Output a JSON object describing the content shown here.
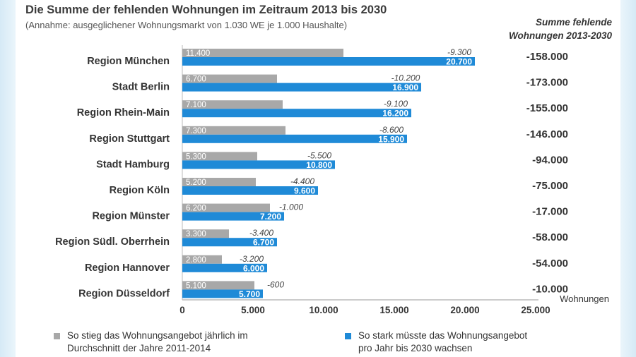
{
  "chart_data": {
    "type": "bar",
    "title": "Die Summe der fehlenden Wohnungen im Zeitraum 2013 bis 2030",
    "subtitle": "(Annahme: ausgeglichener Wohnungsmarkt von 1.030 WE je 1.000 Haushalte)",
    "sum_header": [
      "Summe fehlende",
      "Wohnungen 2013-2030"
    ],
    "xlabel": "Wohnungen",
    "xlim": [
      0,
      25000
    ],
    "xticks": [
      "0",
      "5.000",
      "10.000",
      "15.000",
      "20.000",
      "25.000"
    ],
    "categories": [
      "Region München",
      "Stadt Berlin",
      "Region Rhein-Main",
      "Region Stuttgart",
      "Stadt Hamburg",
      "Region Köln",
      "Region Münster",
      "Region Südl. Oberrhein",
      "Region Hannover",
      "Region Düsseldorf"
    ],
    "series": [
      {
        "name": "So stieg das Wohnungsangebot jährlich im Durchschnitt der Jahre 2011-2014",
        "color": "#a8a8a8",
        "values": [
          11400,
          6700,
          7100,
          7300,
          5300,
          5200,
          6200,
          3300,
          2800,
          5100
        ],
        "labels": [
          "11.400",
          "6.700",
          "7.100",
          "7.300",
          "5.300",
          "5.200",
          "6.200",
          "3.300",
          "2.800",
          "5.100"
        ]
      },
      {
        "name": "So stark müsste das Wohnungsangebot pro Jahr bis 2030 wachsen",
        "color": "#1f8ad7",
        "values": [
          20700,
          16900,
          16200,
          15900,
          10800,
          9600,
          7200,
          6700,
          6000,
          5700
        ],
        "labels": [
          "20.700",
          "16.900",
          "16.200",
          "15.900",
          "10.800",
          "9.600",
          "7.200",
          "6.700",
          "6.000",
          "5.700"
        ]
      }
    ],
    "differences": [
      "-9.300",
      "-10.200",
      "-9.100",
      "-8.600",
      "-5.500",
      "-4.400",
      "-1.000",
      "-3.400",
      "-3.200",
      "-600"
    ],
    "sums": [
      "-158.000",
      "-173.000",
      "-155.000",
      "-146.000",
      "-94.000",
      "-75.000",
      "-17.000",
      "-58.000",
      "-54.000",
      "-10.000"
    ],
    "legend": {
      "gray": [
        "So stieg das Wohnungsangebot jährlich im",
        "Durchschnitt der Jahre 2011-2014"
      ],
      "blue": [
        "So stark müsste das Wohnungsangebot",
        "pro Jahr bis 2030 wachsen"
      ]
    }
  }
}
